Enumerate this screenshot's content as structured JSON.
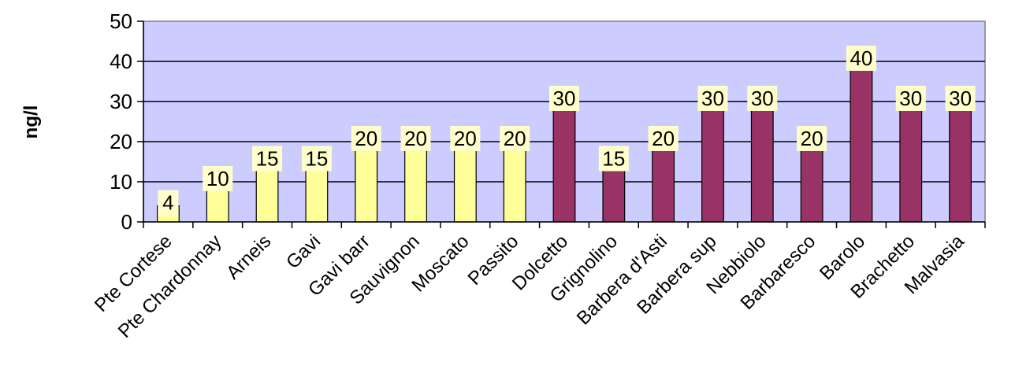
{
  "chart_data": {
    "type": "bar",
    "title": "",
    "xlabel": "",
    "ylabel": "ng/l",
    "ylim": [
      0,
      50
    ],
    "yticks": [
      0,
      10,
      20,
      30,
      40,
      50
    ],
    "grid": "horizontal",
    "legend": "none",
    "categories": [
      "Pte Cortese",
      "Pte Chardonnay",
      "Arneis",
      "Gavi",
      "Gavi barr",
      "Sauvignon",
      "Moscato",
      "Passito",
      "Dolcetto",
      "Grignolino",
      "Barbera d'Asti",
      "Barbera sup",
      "Nebbiolo",
      "Barbaresco",
      "Barolo",
      "Brachetto",
      "Malvasia"
    ],
    "values": [
      4,
      10,
      15,
      15,
      20,
      20,
      20,
      20,
      30,
      15,
      20,
      30,
      30,
      20,
      40,
      30,
      30
    ],
    "data_labels": [
      "4",
      "10",
      "15",
      "15",
      "20",
      "20",
      "20",
      "20",
      "30",
      "15",
      "20",
      "30",
      "30",
      "20",
      "40",
      "30",
      "30"
    ],
    "bar_colors": [
      "#ffff99",
      "#ffff99",
      "#ffff99",
      "#ffff99",
      "#ffff99",
      "#ffff99",
      "#ffff99",
      "#ffff99",
      "#993366",
      "#993366",
      "#993366",
      "#993366",
      "#993366",
      "#993366",
      "#993366",
      "#993366",
      "#993366"
    ],
    "plot_background": "#ccccff",
    "label_background": "#ffffcc"
  }
}
